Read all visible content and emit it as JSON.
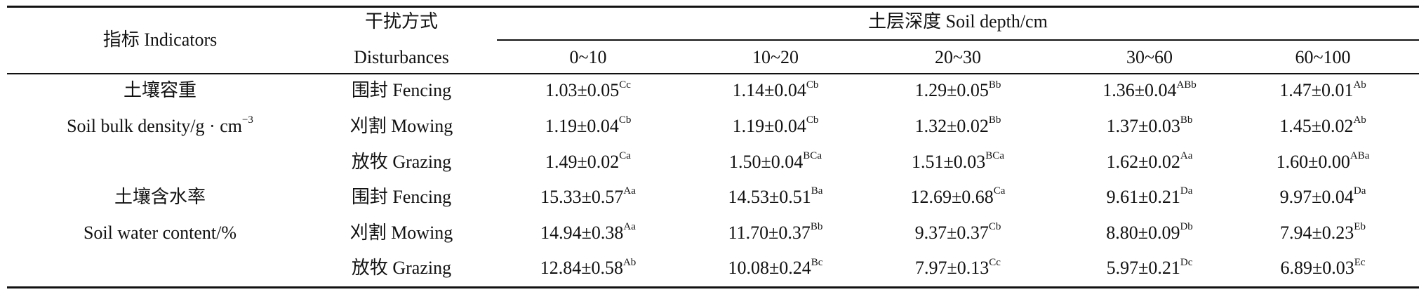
{
  "header": {
    "indicator": "指标 Indicators",
    "disturbance_zh": "干扰方式",
    "disturbance_en": "Disturbances",
    "depth": "土层深度 Soil depth/cm",
    "depths": [
      "0~10",
      "10~20",
      "20~30",
      "30~60",
      "60~100"
    ]
  },
  "groups": [
    {
      "name_zh": "土壤容重",
      "name_en": "Soil bulk density/g · cm",
      "name_en_sup": "−3",
      "rows": [
        {
          "disturbance": "围封 Fencing",
          "cells": [
            {
              "value": "1.03±0.05",
              "sig": "Cc"
            },
            {
              "value": "1.14±0.04",
              "sig": "Cb"
            },
            {
              "value": "1.29±0.05",
              "sig": "Bb"
            },
            {
              "value": "1.36±0.04",
              "sig": "ABb"
            },
            {
              "value": "1.47±0.01",
              "sig": "Ab"
            }
          ]
        },
        {
          "disturbance": "刈割 Mowing",
          "cells": [
            {
              "value": "1.19±0.04",
              "sig": "Cb"
            },
            {
              "value": "1.19±0.04",
              "sig": "Cb"
            },
            {
              "value": "1.32±0.02",
              "sig": "Bb"
            },
            {
              "value": "1.37±0.03",
              "sig": "Bb"
            },
            {
              "value": "1.45±0.02",
              "sig": "Ab"
            }
          ]
        },
        {
          "disturbance": "放牧 Grazing",
          "cells": [
            {
              "value": "1.49±0.02",
              "sig": "Ca"
            },
            {
              "value": "1.50±0.04",
              "sig": "BCa"
            },
            {
              "value": "1.51±0.03",
              "sig": "BCa"
            },
            {
              "value": "1.62±0.02",
              "sig": "Aa"
            },
            {
              "value": "1.60±0.00",
              "sig": "ABa"
            }
          ]
        }
      ]
    },
    {
      "name_zh": "土壤含水率",
      "name_en": "Soil water content/%",
      "rows": [
        {
          "disturbance": "围封 Fencing",
          "cells": [
            {
              "value": "15.33±0.57",
              "sig": "Aa"
            },
            {
              "value": "14.53±0.51",
              "sig": "Ba"
            },
            {
              "value": "12.69±0.68",
              "sig": "Ca"
            },
            {
              "value": "9.61±0.21",
              "sig": "Da"
            },
            {
              "value": "9.97±0.04",
              "sig": "Da"
            }
          ]
        },
        {
          "disturbance": "刈割 Mowing",
          "cells": [
            {
              "value": "14.94±0.38",
              "sig": "Aa"
            },
            {
              "value": "11.70±0.37",
              "sig": "Bb"
            },
            {
              "value": "9.37±0.37",
              "sig": "Cb"
            },
            {
              "value": "8.80±0.09",
              "sig": "Db"
            },
            {
              "value": "7.94±0.23",
              "sig": "Eb"
            }
          ]
        },
        {
          "disturbance": "放牧 Grazing",
          "cells": [
            {
              "value": "12.84±0.58",
              "sig": "Ab"
            },
            {
              "value": "10.08±0.24",
              "sig": "Bc"
            },
            {
              "value": "7.97±0.13",
              "sig": "Cc"
            },
            {
              "value": "5.97±0.21",
              "sig": "Dc"
            },
            {
              "value": "6.89±0.03",
              "sig": "Ec"
            }
          ]
        }
      ]
    }
  ]
}
